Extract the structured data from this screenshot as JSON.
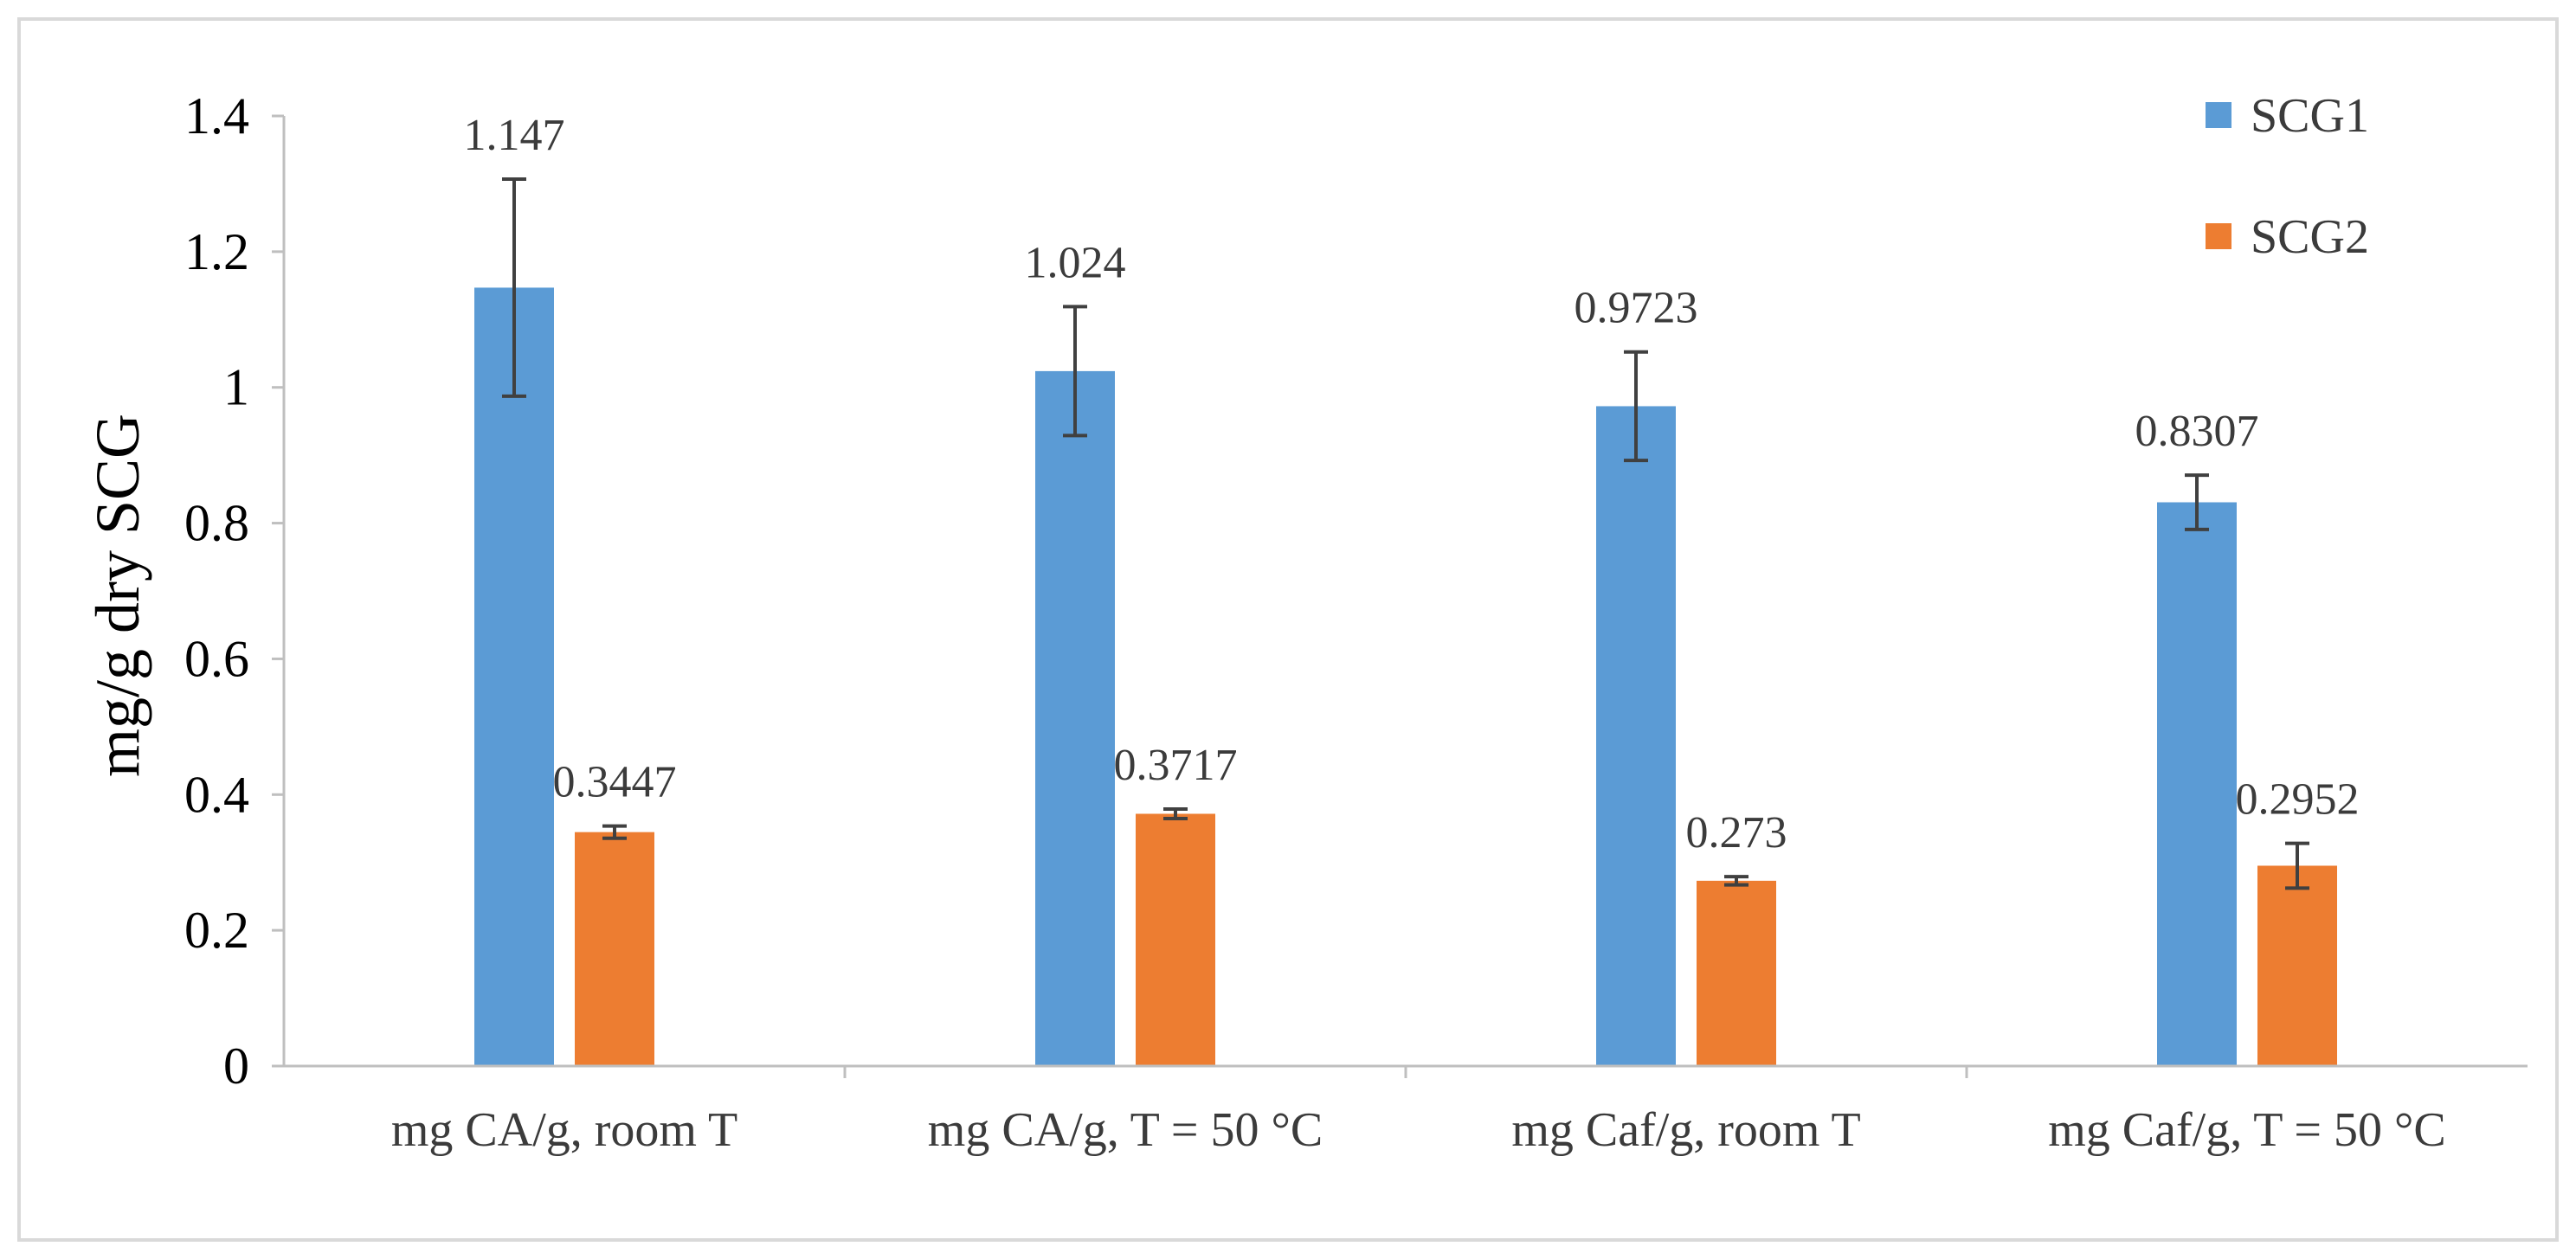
{
  "chart_data": {
    "type": "bar",
    "title": "",
    "xlabel": "",
    "ylabel": "mg/g dry SCG",
    "ylim": [
      0,
      1.4
    ],
    "yticks": [
      0,
      0.2,
      0.4,
      0.6,
      0.8,
      1,
      1.2,
      1.4
    ],
    "ytick_labels": [
      "0",
      "0.2",
      "0.4",
      "0.6",
      "0.8",
      "1",
      "1.2",
      "1.4"
    ],
    "grid": false,
    "legend_position": "top-right",
    "categories": [
      "mg CA/g, room T",
      "mg CA/g, T = 50 °C",
      "mg Caf/g, room T",
      "mg Caf/g, T = 50 °C"
    ],
    "series": [
      {
        "name": "SCG1",
        "color": "#5B9BD5",
        "values": [
          1.147,
          1.024,
          0.9723,
          0.8307
        ],
        "value_labels": [
          "1.147",
          "1.024",
          "0.9723",
          "0.8307"
        ],
        "errors": [
          0.16,
          0.095,
          0.08,
          0.04
        ]
      },
      {
        "name": "SCG2",
        "color": "#ED7D31",
        "values": [
          0.3447,
          0.3717,
          0.273,
          0.2952
        ],
        "value_labels": [
          "0.3447",
          "0.3717",
          "0.273",
          "0.2952"
        ],
        "errors": [
          0.009,
          0.007,
          0.006,
          0.033
        ]
      }
    ]
  }
}
